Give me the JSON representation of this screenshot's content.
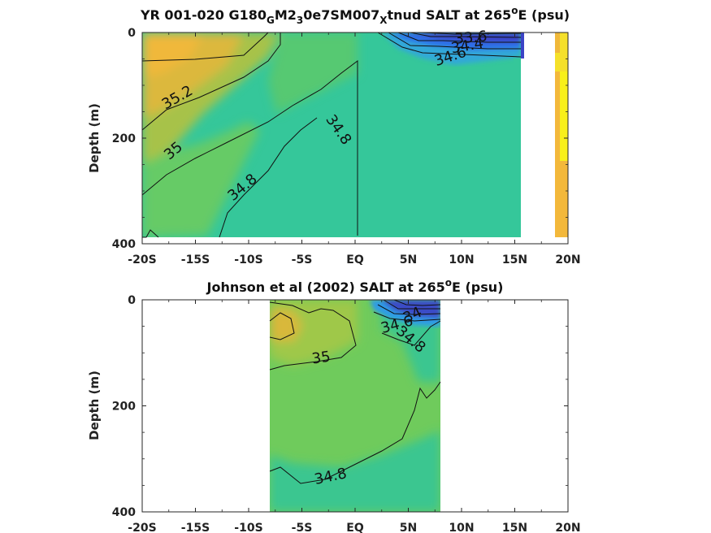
{
  "chart_data": [
    {
      "type": "heatmap",
      "title": {
        "p1": "YR 001-020 G180",
        "s1": "G",
        "p2": "M2",
        "s2": "3",
        "p3": "0e7SM007",
        "s3": "X",
        "p4": "tnud SALT at 265",
        "sup": "o",
        "p5": "E (psu)"
      },
      "ylabel": "Depth (m)",
      "xlim": [
        -20,
        20
      ],
      "ylim": [
        0,
        400
      ],
      "y_reversed": true,
      "xticks": [
        "-20S",
        "-15S",
        "-10S",
        "-5S",
        "EQ",
        "5N",
        "10N",
        "15N",
        "20N"
      ],
      "yticks": [
        "0",
        "200",
        "400"
      ],
      "contour_labels": [
        "35.2",
        "35",
        "34.8",
        "34.8",
        "34.6",
        "34.4",
        "33.6"
      ],
      "colormap": [
        "#3e26a8",
        "#2f9ff8",
        "#2ec4a0",
        "#7dcb58",
        "#f2b83a",
        "#f9fb0e"
      ],
      "fields": [
        {
          "lon_range": [
            -20,
            15.5
          ],
          "salinity": [
            [
              35.3,
              35.2,
              35.0,
              34.9,
              34.8,
              34.7,
              33.4
            ],
            [
              35.2,
              35.1,
              34.95,
              34.85,
              34.8,
              34.7,
              34.6
            ],
            [
              35.1,
              35.0,
              34.9,
              34.8,
              34.8,
              34.75,
              34.7
            ],
            [
              35.0,
              34.9,
              34.85,
              34.8,
              34.75,
              34.75,
              34.7
            ]
          ]
        },
        {
          "lon_range": [
            19,
            20
          ],
          "salinity": [
            [
              35.8
            ],
            [
              35.6
            ],
            [
              35.4
            ],
            [
              35.3
            ]
          ]
        }
      ]
    },
    {
      "type": "heatmap",
      "title": {
        "p1": "Johnson et al (2002) SALT at 265",
        "sup": "o",
        "p5": "E (psu)"
      },
      "ylabel": "Depth (m)",
      "xlim": [
        -20,
        20
      ],
      "ylim": [
        0,
        400
      ],
      "y_reversed": true,
      "xticks": [
        "-20S",
        "-15S",
        "-10S",
        "-5S",
        "EQ",
        "5N",
        "10N",
        "15N",
        "20N"
      ],
      "yticks": [
        "0",
        "200",
        "400"
      ],
      "contour_labels": [
        "35",
        "34.6",
        "34.8",
        "34.8",
        "34"
      ],
      "colormap": [
        "#3e26a8",
        "#2f9ff8",
        "#2ec4a0",
        "#7dcb58",
        "#f2b83a",
        "#f9fb0e"
      ],
      "fields": [
        {
          "lon_range": [
            -8,
            8
          ],
          "salinity": [
            [
              35.15,
              35.0,
              34.95,
              34.8,
              33.8
            ],
            [
              35.05,
              35.0,
              34.95,
              34.85,
              34.8
            ],
            [
              35.0,
              34.95,
              34.9,
              34.85,
              34.8
            ],
            [
              34.85,
              34.85,
              34.8,
              34.8,
              34.8
            ]
          ]
        }
      ]
    }
  ]
}
